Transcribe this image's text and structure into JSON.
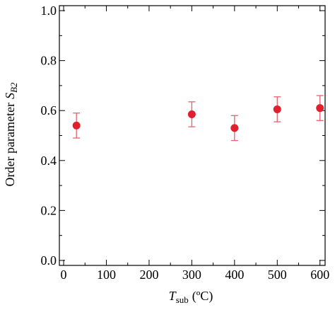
{
  "chart_data": {
    "type": "scatter",
    "x_label": {
      "symbol": "T",
      "subscript": "sub",
      "unit": "(ºC)"
    },
    "y_label": {
      "text": "Order parameter",
      "symbol": "S",
      "subscript": "B2"
    },
    "x": [
      30,
      300,
      400,
      500,
      600
    ],
    "series": [
      {
        "color": "#e0202c",
        "values": [
          0.54,
          0.585,
          0.53,
          0.605,
          0.61
        ],
        "errors": [
          0.05,
          0.05,
          0.05,
          0.05,
          0.05
        ]
      }
    ],
    "xlim": [
      -10,
      612
    ],
    "ylim": [
      -0.02,
      1.02
    ],
    "xticks": [
      0,
      100,
      200,
      300,
      400,
      500,
      600
    ],
    "yticks": [
      {
        "value": 0,
        "label": "0.0"
      },
      {
        "value": 0.2,
        "label": "0.2"
      },
      {
        "value": 0.4,
        "label": "0.4"
      },
      {
        "value": 0.6,
        "label": "0.6"
      },
      {
        "value": 0.8,
        "label": "0.8"
      },
      {
        "value": 1,
        "label": "1.0"
      }
    ]
  }
}
